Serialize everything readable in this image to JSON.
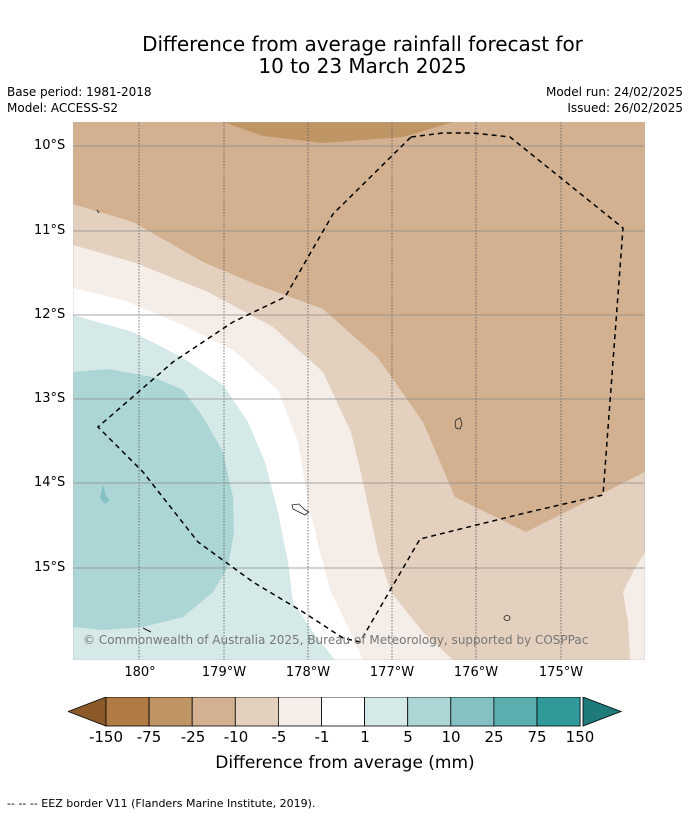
{
  "header": {
    "title_line1": "Difference from average rainfall forecast for",
    "title_line2": "10 to 23 March 2025",
    "base_period": "Base period: 1981-2018",
    "model": "Model: ACCESS-S2",
    "model_run": "Model run: 24/02/2025",
    "issued": "Issued: 26/02/2025"
  },
  "map": {
    "lat_labels": [
      "10°S",
      "11°S",
      "12°S",
      "13°S",
      "14°S",
      "15°S"
    ],
    "lon_labels": [
      "180°",
      "179°W",
      "178°W",
      "177°W",
      "176°W",
      "175°W"
    ],
    "copyright": "© Commonwealth of Australia 2025, Bureau of Meteorology, supported by COSPPac"
  },
  "legend": {
    "ticks": [
      "-150",
      "-75",
      "-25",
      "-10",
      "-5",
      "-1",
      "1",
      "5",
      "10",
      "25",
      "75",
      "150"
    ],
    "colors": {
      "below_150": "#8c5a2a",
      "n150_75": "#b07a43",
      "n75_25": "#c09565",
      "n25_10": "#d3b190",
      "n10_5": "#e3d0bf",
      "n5_1": "#f5ede8",
      "n1_1": "#ffffff",
      "p1_5": "#d5e9e8",
      "p5_10": "#acd5d6",
      "p10_25": "#85c0c2",
      "p25_75": "#59aeae",
      "p75_150": "#2f9a99",
      "above_150": "#1f7a7a"
    },
    "title": "Difference from average (mm)"
  },
  "footer": {
    "eez_note": "--  --  -- EEZ border V11 (Flanders Marine Institute, 2019)."
  }
}
